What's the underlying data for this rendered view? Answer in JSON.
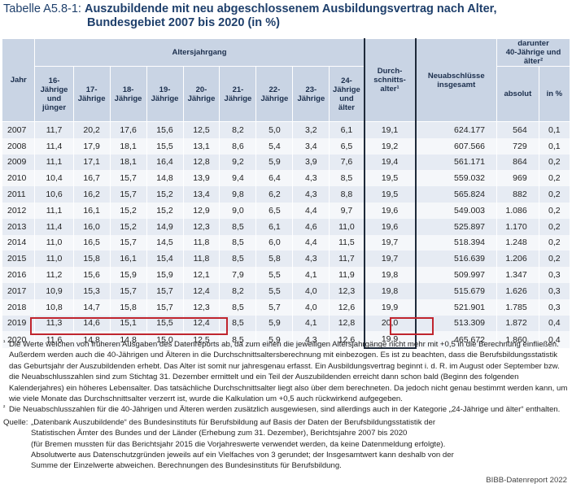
{
  "title": {
    "prefix": "Tabelle A5.8-1:",
    "line1": "Auszubildende mit neu abgeschlossenem Ausbildungsvertrag nach Alter,",
    "line2": "Bundesgebiet 2007 bis 2020 (in %)"
  },
  "headers": {
    "jahr": "Jahr",
    "altersjahrgang": "Altersjahrgang",
    "age_cols": [
      "16-\nJährige\nund\njünger",
      "17-\nJährige",
      "18-\nJährige",
      "19-\nJährige",
      "20-\nJährige",
      "21-\nJährige",
      "22-\nJährige",
      "23-\nJährige",
      "24-\nJährige\nund\nälter"
    ],
    "durchschnitt": "Durch-\nschnitts-\nalter¹",
    "neuabschluesse": "Neuabschlüsse\ninsgesamt",
    "darunter": "darunter\n40-Jährige und\nälter²",
    "absolut": "absolut",
    "prozent": "in %"
  },
  "rows": [
    {
      "year": "2007",
      "ages": [
        "11,7",
        "20,2",
        "17,6",
        "15,6",
        "12,5",
        "8,2",
        "5,0",
        "3,2",
        "6,1"
      ],
      "avg": "19,1",
      "total": "624.177",
      "abs": "564",
      "pct": "0,1"
    },
    {
      "year": "2008",
      "ages": [
        "11,4",
        "17,9",
        "18,1",
        "15,5",
        "13,1",
        "8,6",
        "5,4",
        "3,4",
        "6,5"
      ],
      "avg": "19,2",
      "total": "607.566",
      "abs": "729",
      "pct": "0,1"
    },
    {
      "year": "2009",
      "ages": [
        "11,1",
        "17,1",
        "18,1",
        "16,4",
        "12,8",
        "9,2",
        "5,9",
        "3,9",
        "7,6"
      ],
      "avg": "19,4",
      "total": "561.171",
      "abs": "864",
      "pct": "0,2"
    },
    {
      "year": "2010",
      "ages": [
        "10,4",
        "16,7",
        "15,7",
        "14,8",
        "13,9",
        "9,4",
        "6,4",
        "4,3",
        "8,5"
      ],
      "avg": "19,5",
      "total": "559.032",
      "abs": "969",
      "pct": "0,2"
    },
    {
      "year": "2011",
      "ages": [
        "10,6",
        "16,2",
        "15,7",
        "15,2",
        "13,4",
        "9,8",
        "6,2",
        "4,3",
        "8,8"
      ],
      "avg": "19,5",
      "total": "565.824",
      "abs": "882",
      "pct": "0,2"
    },
    {
      "year": "2012",
      "ages": [
        "11,1",
        "16,1",
        "15,2",
        "15,2",
        "12,9",
        "9,0",
        "6,5",
        "4,4",
        "9,7"
      ],
      "avg": "19,6",
      "total": "549.003",
      "abs": "1.086",
      "pct": "0,2"
    },
    {
      "year": "2013",
      "ages": [
        "11,4",
        "16,0",
        "15,2",
        "14,9",
        "12,3",
        "8,5",
        "6,1",
        "4,6",
        "11,0"
      ],
      "avg": "19,6",
      "total": "525.897",
      "abs": "1.170",
      "pct": "0,2"
    },
    {
      "year": "2014",
      "ages": [
        "11,0",
        "16,5",
        "15,7",
        "14,5",
        "11,8",
        "8,5",
        "6,0",
        "4,4",
        "11,5"
      ],
      "avg": "19,7",
      "total": "518.394",
      "abs": "1.248",
      "pct": "0,2"
    },
    {
      "year": "2015",
      "ages": [
        "11,0",
        "15,8",
        "16,1",
        "15,4",
        "11,8",
        "8,5",
        "5,8",
        "4,3",
        "11,7"
      ],
      "avg": "19,7",
      "total": "516.639",
      "abs": "1.206",
      "pct": "0,2"
    },
    {
      "year": "2016",
      "ages": [
        "11,2",
        "15,6",
        "15,9",
        "15,9",
        "12,1",
        "7,9",
        "5,5",
        "4,1",
        "11,9"
      ],
      "avg": "19,8",
      "total": "509.997",
      "abs": "1.347",
      "pct": "0,3"
    },
    {
      "year": "2017",
      "ages": [
        "10,9",
        "15,3",
        "15,7",
        "15,7",
        "12,4",
        "8,2",
        "5,5",
        "4,0",
        "12,3"
      ],
      "avg": "19,8",
      "total": "515.679",
      "abs": "1.626",
      "pct": "0,3"
    },
    {
      "year": "2018",
      "ages": [
        "10,8",
        "14,7",
        "15,8",
        "15,7",
        "12,3",
        "8,5",
        "5,7",
        "4,0",
        "12,6"
      ],
      "avg": "19,9",
      "total": "521.901",
      "abs": "1.785",
      "pct": "0,3"
    },
    {
      "year": "2019",
      "ages": [
        "11,3",
        "14,6",
        "15,1",
        "15,5",
        "12,4",
        "8,5",
        "5,9",
        "4,1",
        "12,8"
      ],
      "avg": "20,0",
      "total": "513.309",
      "abs": "1.872",
      "pct": "0,4"
    },
    {
      "year": "2020",
      "ages": [
        "11,6",
        "14,8",
        "14,8",
        "15,0",
        "12,5",
        "8,5",
        "5,9",
        "4,3",
        "12,6"
      ],
      "avg": "19,9",
      "total": "465.672",
      "abs": "1.860",
      "pct": "0,4"
    }
  ],
  "footnotes": {
    "fn1_mark": "¹",
    "fn1": "Die Werte weichen von früheren Ausgaben des Datenreports ab, da zum einen die jeweiligen Altersjahrgänge nicht mehr mit +0,5 in die Berechnung einfließen. Außerdem werden auch die 40-Jährigen und Älteren in die Durchschnittsaltersberechnung mit einbezogen. Es ist zu beachten, dass die Berufsbildungsstatistik das Geburtsjahr der Auszubildenden erhebt. Das Alter ist somit nur jahresgenau erfasst. Ein Ausbildungsvertrag beginnt i. d. R. im August oder September bzw. die Neuabschlusszahlen sind zum Stichtag 31. Dezember ermittelt und ein Teil der Auszubildenden erreicht dann schon bald (Beginn des folgenden Kalenderjahres) ein höheres Lebensalter. Das tatsächliche Durchschnittsalter liegt also über dem berechneten. Da jedoch nicht genau bestimmt werden kann, um wie viele Monate das Durchschnittsalter verzerrt ist, wurde die Kalkulation um +0,5 auch rückwirkend aufgegeben.",
    "fn2_mark": "²",
    "fn2": "Die Neuabschlusszahlen für die 40-Jährigen und Älteren werden zusätzlich ausgewiesen, sind allerdings auch in der Kategorie „24-Jährige und älter“ enthalten.",
    "quelle_label": "Quelle:",
    "quelle_line1": "„Datenbank Auszubildende“ des Bundesinstituts für Berufsbildung auf Basis der Daten der Berufsbildungsstatistik der",
    "quelle_line2": "Statistischen Ämter des Bundes und der Länder (Erhebung zum 31. Dezember), Berichtsjahre 2007 bis 2020",
    "quelle_line3": "(für Bremen mussten für das Berichtsjahr 2015 die Vorjahreswerte verwendet werden, da keine Datenmeldung erfolgte).",
    "quelle_line4": "Absolutwerte aus Datenschutzgründen jeweils auf ein Vielfaches von 3 gerundet; der Insgesamtwert kann deshalb von der",
    "quelle_line5": "Summe der Einzelwerte abweichen. Berechnungen des Bundesinstituts für Berufsbildung."
  },
  "credit": "BIBB-Datenreport 2022",
  "colors": {
    "header_bg": "#c9d4e4",
    "title": "#1e3f6b",
    "highlight": "#c0252e",
    "row_odd": "#e6ebf3",
    "row_even": "#f5f7fa"
  }
}
